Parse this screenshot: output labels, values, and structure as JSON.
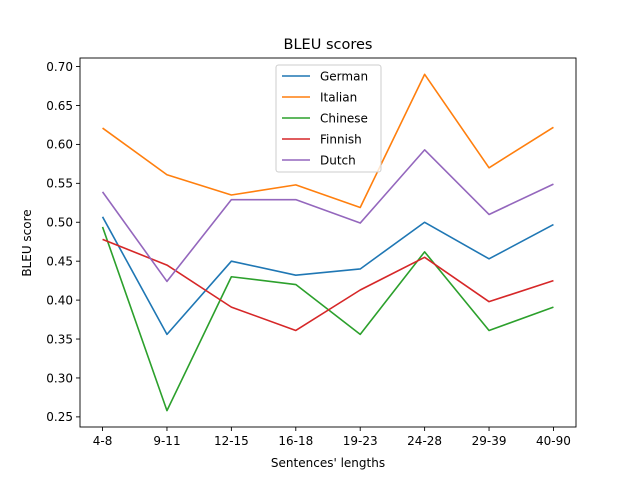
{
  "chart_data": {
    "type": "line",
    "title": "BLEU scores",
    "xlabel": "Sentences' lengths",
    "ylabel": "BLEU score",
    "categories": [
      "4-8",
      "9-11",
      "12-15",
      "16-18",
      "19-23",
      "24-28",
      "29-39",
      "40-90"
    ],
    "ylim": [
      0.237,
      0.711
    ],
    "yticks": [
      "0.25",
      "0.30",
      "0.35",
      "0.40",
      "0.45",
      "0.50",
      "0.55",
      "0.60",
      "0.65",
      "0.70"
    ],
    "grid": false,
    "legend_position": "upper-center",
    "series": [
      {
        "name": "German",
        "color": "#1f77b4",
        "values": [
          0.507,
          0.356,
          0.45,
          0.432,
          0.44,
          0.5,
          0.453,
          0.497
        ]
      },
      {
        "name": "Italian",
        "color": "#ff7f0e",
        "values": [
          0.621,
          0.561,
          0.535,
          0.548,
          0.519,
          0.69,
          0.57,
          0.622
        ]
      },
      {
        "name": "Chinese",
        "color": "#2ca02c",
        "values": [
          0.494,
          0.258,
          0.43,
          0.42,
          0.356,
          0.462,
          0.361,
          0.391
        ]
      },
      {
        "name": "Finnish",
        "color": "#d62728",
        "values": [
          0.478,
          0.445,
          0.391,
          0.361,
          0.413,
          0.455,
          0.398,
          0.425
        ]
      },
      {
        "name": "Dutch",
        "color": "#9467bd",
        "values": [
          0.539,
          0.424,
          0.529,
          0.529,
          0.499,
          0.593,
          0.51,
          0.549
        ]
      }
    ]
  }
}
